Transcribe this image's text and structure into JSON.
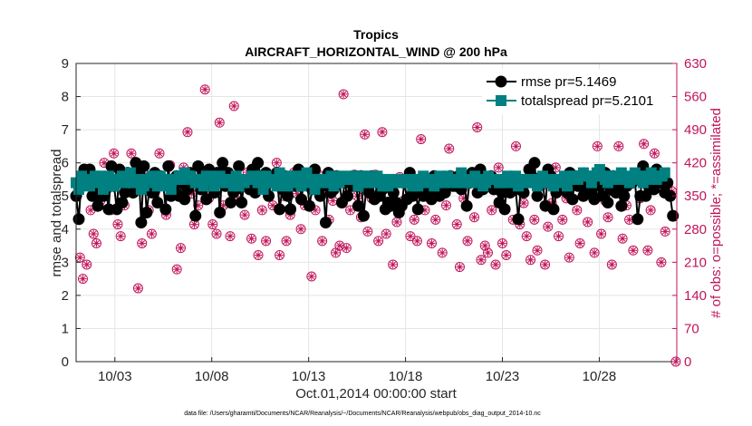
{
  "chart_data": {
    "type": "line",
    "title": "Tropics",
    "subtitle": "AIRCRAFT_HORIZONTAL_WIND @ 200 hPa",
    "xlabel": "Oct.01,2014 00:00:00 start",
    "ylabel": "rmse and totalspread",
    "y2label": "# of obs: o=possible; *=assimilated",
    "footer": "data file: /Users/gharamti/Documents/NCAR/Reanalysis/~/Documents/NCAR/Reanalysis/webpub/obs_diag_output_2014-10.nc",
    "xlim": [
      1.0,
      32.0
    ],
    "ylim": [
      0,
      9
    ],
    "y2lim": [
      0,
      630
    ],
    "x_ticks": [
      {
        "value": 3,
        "label": "10/03"
      },
      {
        "value": 8,
        "label": "10/08"
      },
      {
        "value": 13,
        "label": "10/13"
      },
      {
        "value": 18,
        "label": "10/18"
      },
      {
        "value": 23,
        "label": "10/23"
      },
      {
        "value": 28,
        "label": "10/28"
      }
    ],
    "y_ticks": [
      "0",
      "1",
      "2",
      "3",
      "4",
      "5",
      "6",
      "7",
      "8",
      "9"
    ],
    "y2_ticks": [
      "0",
      "70",
      "140",
      "210",
      "280",
      "350",
      "420",
      "490",
      "560",
      "630"
    ],
    "grid": true,
    "legend_position": "top-right",
    "colors": {
      "rmse": "#000000",
      "totalspread": "#008080",
      "obs": "#c0145a"
    },
    "series": [
      {
        "name": "rmse pr=5.1469",
        "values": [
          5.0,
          4.3,
          5.6,
          5.8,
          5.5,
          5.8,
          5.0,
          5.2,
          4.7,
          5.5,
          5.0,
          5.2,
          4.6,
          5.9,
          5.3,
          4.6,
          5.8,
          4.8,
          5.1,
          5.7,
          5.6,
          5.1,
          6.0,
          5.8,
          4.2,
          5.9,
          4.5,
          5.2,
          5.1,
          5.7,
          4.8,
          5.6,
          5.5,
          4.6,
          5.9,
          5.0,
          5.2,
          5.6,
          5.0,
          5.4,
          4.9,
          5.2,
          5.7,
          5.4,
          4.4,
          5.9,
          5.2,
          5.6,
          4.9,
          5.8,
          5.3,
          5.1,
          5.7,
          4.5,
          6.0,
          5.3,
          5.7,
          4.8,
          5.1,
          5.2,
          5.9,
          4.8,
          5.4,
          5.3,
          5.2,
          5.8,
          5.1,
          6.0,
          5.6,
          5.3,
          5.7,
          5.0,
          5.5,
          5.4,
          5.7,
          4.6,
          5.2,
          5.6,
          5.0,
          4.6,
          5.5,
          5.3,
          5.8,
          4.9,
          5.4,
          5.6,
          4.7,
          5.2,
          5.8,
          5.5,
          5.0,
          5.3,
          4.2,
          5.7,
          5.1,
          5.2,
          5.6,
          5.5,
          4.8,
          5.4,
          5.0,
          5.5,
          5.3,
          5.6,
          4.7,
          5.6,
          4.4,
          5.3,
          5.1,
          5.6,
          4.9,
          5.4,
          5.0,
          5.2,
          4.6,
          4.8,
          4.7,
          5.1,
          4.8,
          4.5,
          4.7,
          5.4,
          4.9,
          5.7,
          5.0,
          5.3,
          4.6,
          5.2,
          5.0,
          5.4,
          5.2,
          4.9,
          5.6,
          5.2,
          5.0,
          5.3,
          5.1,
          5.5,
          5.6,
          5.3,
          5.3,
          5.6,
          5.2,
          5.5,
          4.7,
          5.4,
          5.7,
          5.6,
          5.1,
          5.8,
          5.2,
          5.3,
          5.5,
          5.6,
          5.2,
          5.4,
          4.8,
          5.1,
          4.6,
          5.5,
          5.1,
          5.5,
          5.2,
          4.3,
          5.3,
          5.1,
          5.4,
          5.8,
          5.6,
          6.0,
          5.0,
          5.5,
          5.4,
          4.7,
          5.8,
          5.6,
          4.6,
          5.1,
          5.4,
          5.3,
          5.5,
          5.1,
          5.7,
          4.9,
          5.6,
          5.3,
          5.5,
          5.0,
          5.2,
          5.4,
          5.1,
          4.9,
          5.5,
          5.3,
          5.0,
          5.7,
          4.8,
          5.2,
          5.6,
          5.1,
          5.3,
          4.7,
          5.0,
          5.3,
          5.5,
          5.4,
          5.5,
          4.3,
          5.0,
          5.9,
          5.0,
          5.3,
          5.6,
          5.2,
          5.8,
          5.4,
          5.5,
          5.1,
          5.4,
          5.0,
          4.4
        ],
        "x_start": 1.0,
        "x_step": 0.14
      },
      {
        "name": "totalspread pr=5.2101",
        "values": [
          5.4,
          5.2,
          5.6,
          5.5,
          5.4,
          5.3,
          5.5,
          5.6,
          5.4,
          5.6,
          5.2,
          5.3,
          5.6,
          5.4,
          5.3,
          5.5,
          5.5,
          5.6,
          5.4,
          5.5,
          5.7,
          5.4,
          5.5,
          5.4,
          5.2,
          5.3,
          5.5,
          5.5,
          5.6,
          5.4,
          5.3,
          5.6,
          5.4,
          5.5,
          5.3,
          5.2,
          5.5,
          5.5,
          5.6,
          5.5,
          5.7,
          5.6,
          5.6,
          5.5,
          5.4,
          5.5,
          5.5,
          5.3,
          5.6,
          5.5,
          5.6,
          5.3,
          5.5,
          5.6,
          5.4,
          5.4,
          5.5,
          5.5,
          5.3,
          5.6,
          5.3,
          5.5,
          5.4,
          5.5,
          5.5,
          5.6,
          5.5,
          5.4,
          5.6,
          5.2,
          5.6,
          5.4,
          5.5,
          5.4,
          5.3,
          5.7,
          5.5,
          5.4,
          5.3,
          5.6,
          5.5,
          5.6,
          5.4,
          5.3,
          5.6,
          5.7,
          5.4,
          5.5,
          5.2,
          5.5,
          5.5,
          5.5,
          5.4,
          5.5,
          5.6,
          5.3,
          5.4,
          5.4,
          5.6,
          5.5,
          5.5,
          5.5,
          5.6,
          5.6,
          5.3,
          5.4,
          5.6,
          5.4,
          5.6,
          5.5,
          5.4,
          5.6,
          5.5,
          5.3,
          5.5,
          5.3,
          5.4,
          5.5,
          5.5,
          5.4,
          5.4,
          5.5,
          5.4,
          5.5,
          5.3,
          5.5,
          5.3,
          5.5,
          5.6,
          5.4,
          5.5,
          5.5,
          5.3,
          5.4,
          5.6,
          5.5,
          5.4,
          5.6,
          5.5,
          5.5,
          5.4,
          5.5,
          5.7,
          5.4,
          5.5,
          5.4,
          5.4,
          5.6,
          5.5,
          5.5,
          5.3,
          5.4,
          5.6,
          5.5,
          5.5,
          5.5,
          5.4,
          5.4,
          5.5,
          5.6,
          5.5,
          5.4,
          5.6,
          5.3,
          5.5,
          5.5,
          5.4,
          5.4,
          5.5,
          5.5,
          5.3,
          5.4,
          5.6,
          5.5,
          5.4,
          5.5,
          5.3,
          5.4,
          5.5,
          5.5,
          5.6,
          5.3,
          5.5,
          5.6,
          5.6,
          5.5,
          5.6,
          5.7,
          5.6,
          5.6,
          5.4,
          5.6,
          5.7,
          5.8,
          5.6,
          5.5,
          5.4,
          5.6,
          5.5,
          5.6,
          5.6,
          5.7,
          5.5,
          5.6,
          5.4,
          5.5,
          5.7,
          5.5,
          5.6,
          5.4,
          5.6,
          5.5,
          5.7,
          5.6,
          5.5,
          5.6,
          5.6,
          5.7
        ],
        "x_start": 1.0,
        "x_step": 0.14
      }
    ],
    "obs_possible": [
      {
        "x": 1.05,
        "v": 355
      },
      {
        "x": 1.2,
        "v": 220
      },
      {
        "x": 1.35,
        "v": 175
      },
      {
        "x": 1.55,
        "v": 205
      },
      {
        "x": 1.75,
        "v": 320
      },
      {
        "x": 1.9,
        "v": 270
      },
      {
        "x": 2.05,
        "v": 250
      },
      {
        "x": 2.25,
        "v": 340
      },
      {
        "x": 2.45,
        "v": 420
      },
      {
        "x": 2.6,
        "v": 370
      },
      {
        "x": 2.8,
        "v": 320
      },
      {
        "x": 2.95,
        "v": 440
      },
      {
        "x": 3.15,
        "v": 290
      },
      {
        "x": 3.3,
        "v": 265
      },
      {
        "x": 3.5,
        "v": 330
      },
      {
        "x": 3.7,
        "v": 380
      },
      {
        "x": 3.85,
        "v": 440
      },
      {
        "x": 4.05,
        "v": 370
      },
      {
        "x": 4.2,
        "v": 155
      },
      {
        "x": 4.4,
        "v": 250
      },
      {
        "x": 4.55,
        "v": 395
      },
      {
        "x": 4.75,
        "v": 320
      },
      {
        "x": 4.9,
        "v": 270
      },
      {
        "x": 5.1,
        "v": 360
      },
      {
        "x": 5.3,
        "v": 440
      },
      {
        "x": 5.45,
        "v": 380
      },
      {
        "x": 5.65,
        "v": 310
      },
      {
        "x": 5.85,
        "v": 415
      },
      {
        "x": 6.0,
        "v": 350
      },
      {
        "x": 6.2,
        "v": 195
      },
      {
        "x": 6.4,
        "v": 240
      },
      {
        "x": 6.55,
        "v": 410
      },
      {
        "x": 6.75,
        "v": 485
      },
      {
        "x": 6.95,
        "v": 355
      },
      {
        "x": 7.1,
        "v": 290
      },
      {
        "x": 7.3,
        "v": 330
      },
      {
        "x": 7.5,
        "v": 395
      },
      {
        "x": 7.65,
        "v": 575
      },
      {
        "x": 7.85,
        "v": 345
      },
      {
        "x": 8.05,
        "v": 290
      },
      {
        "x": 8.25,
        "v": 270
      },
      {
        "x": 8.4,
        "v": 505
      },
      {
        "x": 8.6,
        "v": 330
      },
      {
        "x": 8.8,
        "v": 370
      },
      {
        "x": 8.95,
        "v": 265
      },
      {
        "x": 9.15,
        "v": 540
      },
      {
        "x": 9.3,
        "v": 385
      },
      {
        "x": 9.5,
        "v": 340
      },
      {
        "x": 9.7,
        "v": 310
      },
      {
        "x": 9.85,
        "v": 400
      },
      {
        "x": 10.05,
        "v": 260
      },
      {
        "x": 10.25,
        "v": 360
      },
      {
        "x": 10.4,
        "v": 225
      },
      {
        "x": 10.6,
        "v": 320
      },
      {
        "x": 10.8,
        "v": 255
      },
      {
        "x": 10.95,
        "v": 395
      },
      {
        "x": 11.15,
        "v": 330
      },
      {
        "x": 11.35,
        "v": 420
      },
      {
        "x": 11.5,
        "v": 225
      },
      {
        "x": 11.7,
        "v": 350
      },
      {
        "x": 11.85,
        "v": 255
      },
      {
        "x": 12.05,
        "v": 310
      },
      {
        "x": 12.25,
        "v": 400
      },
      {
        "x": 12.4,
        "v": 355
      },
      {
        "x": 12.6,
        "v": 280
      },
      {
        "x": 12.8,
        "v": 330
      },
      {
        "x": 12.95,
        "v": 370
      },
      {
        "x": 13.15,
        "v": 180
      },
      {
        "x": 13.35,
        "v": 320
      },
      {
        "x": 13.5,
        "v": 395
      },
      {
        "x": 13.7,
        "v": 255
      },
      {
        "x": 13.9,
        "v": 380
      },
      {
        "x": 14.05,
        "v": 300
      },
      {
        "x": 14.25,
        "v": 340
      },
      {
        "x": 14.4,
        "v": 230
      },
      {
        "x": 14.6,
        "v": 245
      },
      {
        "x": 14.8,
        "v": 565
      },
      {
        "x": 14.95,
        "v": 240
      },
      {
        "x": 15.15,
        "v": 320
      },
      {
        "x": 15.35,
        "v": 395
      },
      {
        "x": 15.5,
        "v": 350
      },
      {
        "x": 15.7,
        "v": 305
      },
      {
        "x": 15.9,
        "v": 480
      },
      {
        "x": 16.05,
        "v": 275
      },
      {
        "x": 16.25,
        "v": 345
      },
      {
        "x": 16.45,
        "v": 395
      },
      {
        "x": 16.6,
        "v": 255
      },
      {
        "x": 16.8,
        "v": 485
      },
      {
        "x": 17.0,
        "v": 270
      },
      {
        "x": 17.15,
        "v": 335
      },
      {
        "x": 17.35,
        "v": 205
      },
      {
        "x": 17.55,
        "v": 295
      },
      {
        "x": 17.7,
        "v": 390
      },
      {
        "x": 17.9,
        "v": 340
      },
      {
        "x": 18.1,
        "v": 380
      },
      {
        "x": 18.25,
        "v": 265
      },
      {
        "x": 18.45,
        "v": 300
      },
      {
        "x": 18.6,
        "v": 255
      },
      {
        "x": 18.8,
        "v": 470
      },
      {
        "x": 19.0,
        "v": 320
      },
      {
        "x": 19.15,
        "v": 355
      },
      {
        "x": 19.35,
        "v": 250
      },
      {
        "x": 19.55,
        "v": 300
      },
      {
        "x": 19.7,
        "v": 390
      },
      {
        "x": 19.9,
        "v": 230
      },
      {
        "x": 20.1,
        "v": 330
      },
      {
        "x": 20.25,
        "v": 450
      },
      {
        "x": 20.45,
        "v": 375
      },
      {
        "x": 20.65,
        "v": 290
      },
      {
        "x": 20.8,
        "v": 200
      },
      {
        "x": 21.0,
        "v": 345
      },
      {
        "x": 21.2,
        "v": 255
      },
      {
        "x": 21.35,
        "v": 395
      },
      {
        "x": 21.55,
        "v": 305
      },
      {
        "x": 21.7,
        "v": 495
      },
      {
        "x": 21.9,
        "v": 215
      },
      {
        "x": 22.1,
        "v": 245
      },
      {
        "x": 22.25,
        "v": 230
      },
      {
        "x": 22.45,
        "v": 320
      },
      {
        "x": 22.65,
        "v": 205
      },
      {
        "x": 22.8,
        "v": 410
      },
      {
        "x": 23.0,
        "v": 250
      },
      {
        "x": 23.2,
        "v": 225
      },
      {
        "x": 23.35,
        "v": 380
      },
      {
        "x": 23.55,
        "v": 300
      },
      {
        "x": 23.7,
        "v": 455
      },
      {
        "x": 23.9,
        "v": 290
      },
      {
        "x": 24.1,
        "v": 335
      },
      {
        "x": 24.25,
        "v": 265
      },
      {
        "x": 24.45,
        "v": 215
      },
      {
        "x": 24.65,
        "v": 300
      },
      {
        "x": 24.8,
        "v": 235
      },
      {
        "x": 25.0,
        "v": 370
      },
      {
        "x": 25.2,
        "v": 205
      },
      {
        "x": 25.35,
        "v": 285
      },
      {
        "x": 25.55,
        "v": 335
      },
      {
        "x": 25.75,
        "v": 410
      },
      {
        "x": 25.9,
        "v": 265
      },
      {
        "x": 26.1,
        "v": 300
      },
      {
        "x": 26.3,
        "v": 345
      },
      {
        "x": 26.45,
        "v": 220
      },
      {
        "x": 26.65,
        "v": 385
      },
      {
        "x": 26.85,
        "v": 320
      },
      {
        "x": 27.0,
        "v": 250
      },
      {
        "x": 27.2,
        "v": 400
      },
      {
        "x": 27.4,
        "v": 295
      },
      {
        "x": 27.55,
        "v": 360
      },
      {
        "x": 27.75,
        "v": 230
      },
      {
        "x": 27.9,
        "v": 455
      },
      {
        "x": 28.1,
        "v": 270
      },
      {
        "x": 28.3,
        "v": 340
      },
      {
        "x": 28.45,
        "v": 305
      },
      {
        "x": 28.65,
        "v": 205
      },
      {
        "x": 28.85,
        "v": 365
      },
      {
        "x": 29.0,
        "v": 455
      },
      {
        "x": 29.2,
        "v": 260
      },
      {
        "x": 29.4,
        "v": 330
      },
      {
        "x": 29.55,
        "v": 300
      },
      {
        "x": 29.75,
        "v": 235
      },
      {
        "x": 29.95,
        "v": 395
      },
      {
        "x": 30.1,
        "v": 345
      },
      {
        "x": 30.3,
        "v": 460
      },
      {
        "x": 30.5,
        "v": 235
      },
      {
        "x": 30.65,
        "v": 320
      },
      {
        "x": 30.85,
        "v": 440
      },
      {
        "x": 31.05,
        "v": 390
      },
      {
        "x": 31.2,
        "v": 210
      },
      {
        "x": 31.4,
        "v": 275
      },
      {
        "x": 31.55,
        "v": 375
      },
      {
        "x": 31.75,
        "v": 360
      },
      {
        "x": 31.95,
        "v": 0
      }
    ]
  }
}
